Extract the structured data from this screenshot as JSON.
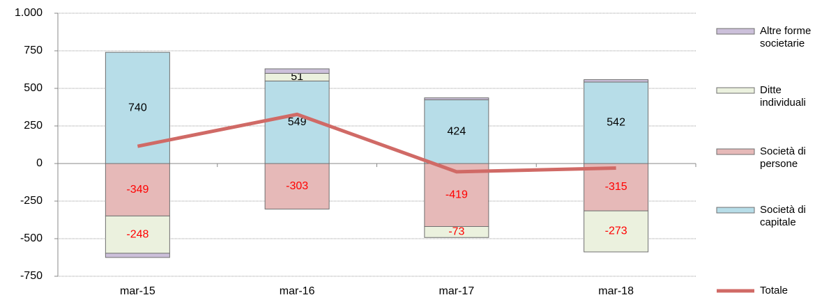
{
  "chart_data": {
    "type": "stacked_bar_line",
    "categories": [
      "mar-15",
      "mar-16",
      "mar-17",
      "mar-18"
    ],
    "series": [
      {
        "name": "Società di capitale",
        "color": "#b7dde8",
        "values": [
          740,
          549,
          424,
          542
        ],
        "labels": true
      },
      {
        "name": "Società di persone",
        "color": "#e6b9b8",
        "values": [
          -349,
          -303,
          -419,
          -315
        ],
        "labels": true
      },
      {
        "name": "Ditte individuali",
        "color": "#ebf1de",
        "values": [
          -248,
          51,
          -73,
          -273
        ],
        "labels": true
      },
      {
        "name": "Altre forme societarie",
        "color": "#ccc0da",
        "values": [
          -28,
          30,
          13,
          16
        ],
        "labels": false
      },
      {
        "name": "Totale",
        "type": "line",
        "color": "#d06a66",
        "values": [
          115,
          327,
          -55,
          -30
        ]
      }
    ],
    "ylim": [
      -750,
      1000
    ],
    "yticks": [
      {
        "value": 1000,
        "label": "1.000"
      },
      750,
      500,
      250,
      0,
      -250,
      -500,
      -750
    ],
    "grid": true,
    "negative_label_color": "#ff0000",
    "legend": "right"
  }
}
